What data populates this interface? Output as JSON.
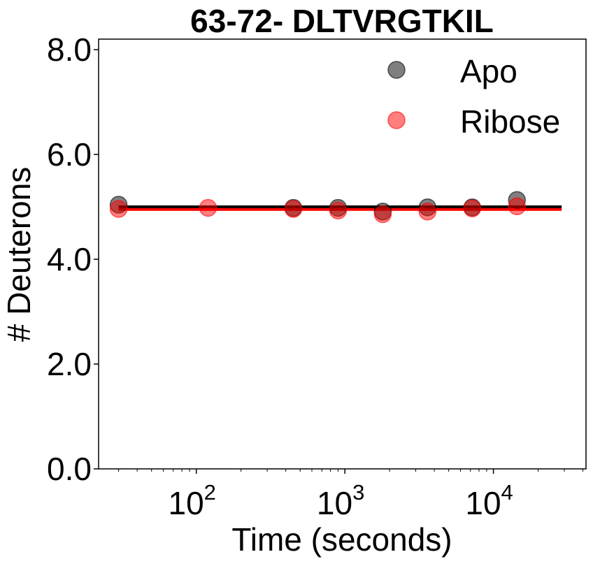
{
  "chart_data": {
    "type": "scatter",
    "title": "63-72- DLTVRGTKIL",
    "xlabel": "Time (seconds)",
    "ylabel": "# Deuterons",
    "xscale": "log",
    "xlim": [
      22,
      42000
    ],
    "ylim": [
      0,
      8.2
    ],
    "yticks": [
      "0.0",
      "2.0",
      "4.0",
      "6.0",
      "8.0"
    ],
    "xticks": [
      {
        "base": "10",
        "exp": "2",
        "value": 100
      },
      {
        "base": "10",
        "exp": "3",
        "value": 1000
      },
      {
        "base": "10",
        "exp": "4",
        "value": 10000
      }
    ],
    "legend_position": "top-right",
    "grid": false,
    "series": [
      {
        "name": "Apo",
        "color": "#000000",
        "alpha": 0.5,
        "points": [
          [
            30,
            5.04
          ],
          [
            450,
            4.98
          ],
          [
            900,
            4.98
          ],
          [
            1800,
            4.91
          ],
          [
            3600,
            4.99
          ],
          [
            7200,
            4.99
          ],
          [
            14400,
            5.13
          ]
        ],
        "fit_y": 5.0
      },
      {
        "name": "Ribose",
        "color": "#ff0000",
        "alpha": 0.5,
        "points": [
          [
            30,
            4.96
          ],
          [
            120,
            4.98
          ],
          [
            450,
            4.96
          ],
          [
            900,
            4.93
          ],
          [
            1800,
            4.86
          ],
          [
            3600,
            4.91
          ],
          [
            7200,
            4.97
          ],
          [
            14400,
            5.01
          ]
        ],
        "fit_y": 4.95
      }
    ],
    "fit_x_range": [
      30,
      28800
    ]
  }
}
